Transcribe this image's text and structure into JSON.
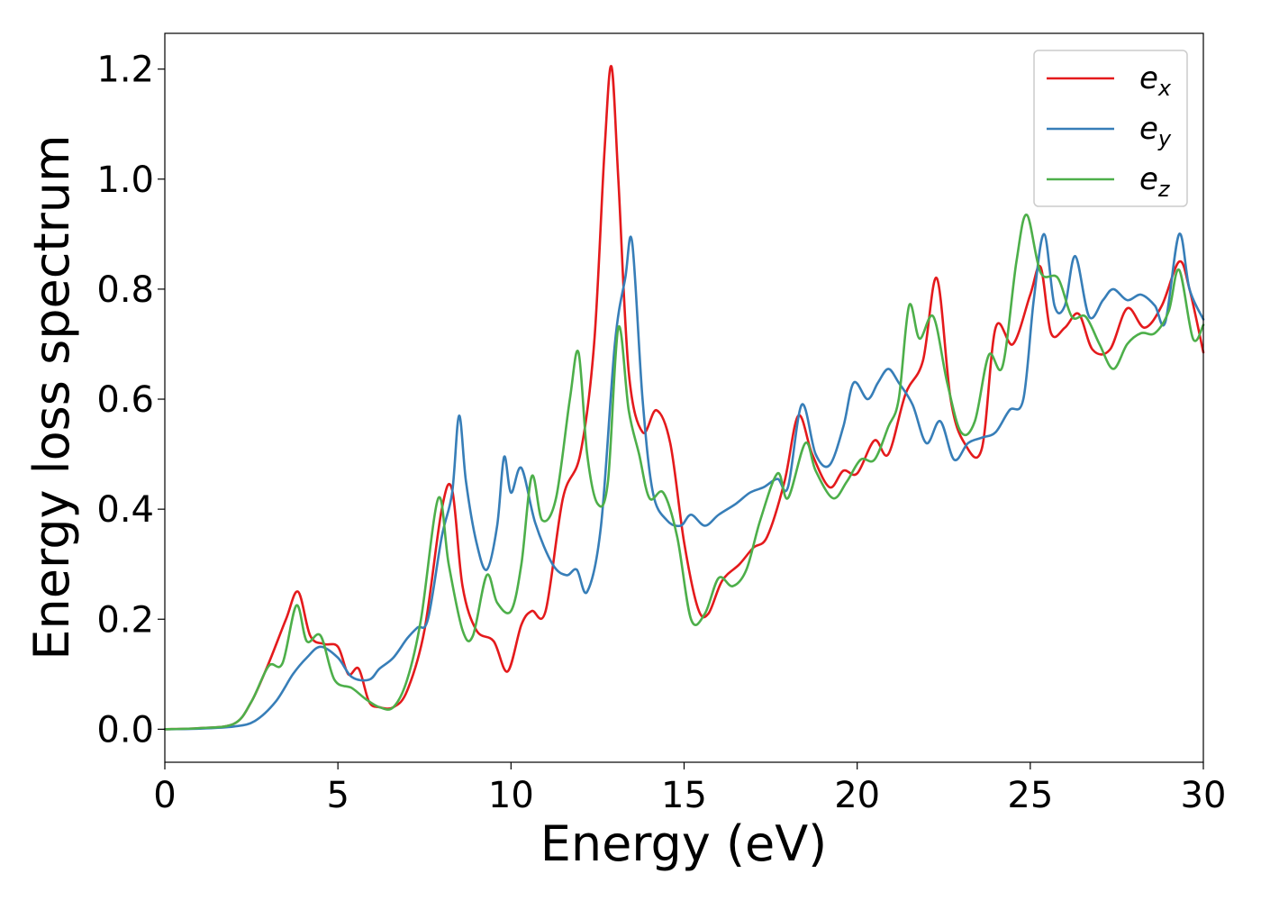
{
  "chart_data": {
    "type": "line",
    "xlabel": "Energy (eV)",
    "ylabel": "Energy loss spectrum",
    "xlim": [
      0,
      30
    ],
    "ylim": [
      -0.06,
      1.265
    ],
    "xticks": [
      "0",
      "5",
      "10",
      "15",
      "20",
      "25",
      "30"
    ],
    "yticks": [
      "0.0",
      "0.2",
      "0.4",
      "0.6",
      "0.8",
      "1.0",
      "1.2"
    ],
    "grid": false,
    "legend_position": "top-right",
    "series": [
      {
        "name": "e_x",
        "legend_base": "e",
        "legend_sub": "x",
        "color": "#e41a1c",
        "points": [
          [
            0,
            0
          ],
          [
            1,
            0.002
          ],
          [
            2,
            0.01
          ],
          [
            2.5,
            0.05
          ],
          [
            3,
            0.12
          ],
          [
            3.5,
            0.2
          ],
          [
            3.85,
            0.25
          ],
          [
            4.2,
            0.17
          ],
          [
            4.6,
            0.155
          ],
          [
            5,
            0.15
          ],
          [
            5.3,
            0.1
          ],
          [
            5.6,
            0.11
          ],
          [
            5.9,
            0.05
          ],
          [
            6.2,
            0.04
          ],
          [
            6.6,
            0.04
          ],
          [
            7,
            0.07
          ],
          [
            7.5,
            0.18
          ],
          [
            8,
            0.4
          ],
          [
            8.3,
            0.435
          ],
          [
            8.6,
            0.26
          ],
          [
            9,
            0.18
          ],
          [
            9.5,
            0.16
          ],
          [
            9.9,
            0.105
          ],
          [
            10.3,
            0.19
          ],
          [
            10.6,
            0.215
          ],
          [
            11,
            0.215
          ],
          [
            11.5,
            0.42
          ],
          [
            12,
            0.5
          ],
          [
            12.4,
            0.7
          ],
          [
            12.7,
            1.05
          ],
          [
            12.9,
            1.205
          ],
          [
            13.1,
            1.0
          ],
          [
            13.4,
            0.65
          ],
          [
            13.8,
            0.54
          ],
          [
            14.2,
            0.58
          ],
          [
            14.6,
            0.52
          ],
          [
            15,
            0.34
          ],
          [
            15.4,
            0.22
          ],
          [
            15.7,
            0.21
          ],
          [
            16.1,
            0.27
          ],
          [
            16.6,
            0.3
          ],
          [
            17,
            0.33
          ],
          [
            17.4,
            0.35
          ],
          [
            17.9,
            0.45
          ],
          [
            18.3,
            0.57
          ],
          [
            18.7,
            0.5
          ],
          [
            19.2,
            0.44
          ],
          [
            19.6,
            0.47
          ],
          [
            20,
            0.465
          ],
          [
            20.5,
            0.525
          ],
          [
            20.9,
            0.5
          ],
          [
            21.4,
            0.61
          ],
          [
            21.9,
            0.67
          ],
          [
            22.3,
            0.82
          ],
          [
            22.7,
            0.6
          ],
          [
            23.1,
            0.52
          ],
          [
            23.6,
            0.51
          ],
          [
            24,
            0.73
          ],
          [
            24.5,
            0.7
          ],
          [
            25,
            0.79
          ],
          [
            25.3,
            0.84
          ],
          [
            25.6,
            0.72
          ],
          [
            26,
            0.73
          ],
          [
            26.4,
            0.755
          ],
          [
            26.8,
            0.69
          ],
          [
            27.3,
            0.69
          ],
          [
            27.8,
            0.765
          ],
          [
            28.3,
            0.73
          ],
          [
            28.8,
            0.77
          ],
          [
            29.3,
            0.85
          ],
          [
            29.6,
            0.8
          ],
          [
            30,
            0.685
          ]
        ]
      },
      {
        "name": "e_y",
        "legend_base": "e",
        "legend_sub": "y",
        "color": "#377eb8",
        "points": [
          [
            0,
            0
          ],
          [
            1,
            0.001
          ],
          [
            2,
            0.005
          ],
          [
            2.6,
            0.015
          ],
          [
            3.2,
            0.05
          ],
          [
            3.7,
            0.1
          ],
          [
            4.1,
            0.13
          ],
          [
            4.5,
            0.15
          ],
          [
            5,
            0.13
          ],
          [
            5.4,
            0.095
          ],
          [
            5.9,
            0.09
          ],
          [
            6.2,
            0.11
          ],
          [
            6.6,
            0.13
          ],
          [
            7,
            0.165
          ],
          [
            7.3,
            0.185
          ],
          [
            7.6,
            0.2
          ],
          [
            8,
            0.35
          ],
          [
            8.3,
            0.43
          ],
          [
            8.5,
            0.57
          ],
          [
            8.7,
            0.45
          ],
          [
            9,
            0.34
          ],
          [
            9.3,
            0.29
          ],
          [
            9.6,
            0.37
          ],
          [
            9.8,
            0.495
          ],
          [
            10,
            0.43
          ],
          [
            10.3,
            0.475
          ],
          [
            10.7,
            0.375
          ],
          [
            11.2,
            0.3
          ],
          [
            11.6,
            0.28
          ],
          [
            11.9,
            0.29
          ],
          [
            12.2,
            0.25
          ],
          [
            12.6,
            0.37
          ],
          [
            13,
            0.7
          ],
          [
            13.3,
            0.82
          ],
          [
            13.5,
            0.885
          ],
          [
            13.8,
            0.6
          ],
          [
            14.1,
            0.43
          ],
          [
            14.5,
            0.38
          ],
          [
            14.9,
            0.37
          ],
          [
            15.2,
            0.39
          ],
          [
            15.6,
            0.37
          ],
          [
            16,
            0.39
          ],
          [
            16.5,
            0.41
          ],
          [
            16.9,
            0.43
          ],
          [
            17.3,
            0.44
          ],
          [
            17.7,
            0.455
          ],
          [
            18,
            0.44
          ],
          [
            18.4,
            0.59
          ],
          [
            18.8,
            0.5
          ],
          [
            19.2,
            0.48
          ],
          [
            19.6,
            0.55
          ],
          [
            19.9,
            0.63
          ],
          [
            20.3,
            0.6
          ],
          [
            20.6,
            0.63
          ],
          [
            20.9,
            0.655
          ],
          [
            21.2,
            0.63
          ],
          [
            21.6,
            0.59
          ],
          [
            22,
            0.52
          ],
          [
            22.4,
            0.56
          ],
          [
            22.8,
            0.49
          ],
          [
            23.2,
            0.52
          ],
          [
            23.6,
            0.53
          ],
          [
            24,
            0.54
          ],
          [
            24.4,
            0.58
          ],
          [
            24.8,
            0.6
          ],
          [
            25.1,
            0.78
          ],
          [
            25.4,
            0.9
          ],
          [
            25.7,
            0.77
          ],
          [
            26,
            0.77
          ],
          [
            26.3,
            0.86
          ],
          [
            26.7,
            0.75
          ],
          [
            27.1,
            0.78
          ],
          [
            27.4,
            0.8
          ],
          [
            27.8,
            0.78
          ],
          [
            28.2,
            0.79
          ],
          [
            28.6,
            0.77
          ],
          [
            28.9,
            0.74
          ],
          [
            29.3,
            0.9
          ],
          [
            29.6,
            0.8
          ],
          [
            30,
            0.745
          ]
        ]
      },
      {
        "name": "e_z",
        "legend_base": "e",
        "legend_sub": "z",
        "color": "#4daf4a",
        "points": [
          [
            0,
            0
          ],
          [
            1,
            0.002
          ],
          [
            2,
            0.01
          ],
          [
            2.5,
            0.05
          ],
          [
            3,
            0.115
          ],
          [
            3.4,
            0.12
          ],
          [
            3.8,
            0.225
          ],
          [
            4.1,
            0.16
          ],
          [
            4.5,
            0.17
          ],
          [
            4.9,
            0.09
          ],
          [
            5.4,
            0.075
          ],
          [
            5.8,
            0.055
          ],
          [
            6.2,
            0.04
          ],
          [
            6.6,
            0.04
          ],
          [
            7,
            0.09
          ],
          [
            7.4,
            0.2
          ],
          [
            7.9,
            0.42
          ],
          [
            8.2,
            0.3
          ],
          [
            8.6,
            0.18
          ],
          [
            8.9,
            0.17
          ],
          [
            9.3,
            0.28
          ],
          [
            9.6,
            0.23
          ],
          [
            10,
            0.215
          ],
          [
            10.3,
            0.3
          ],
          [
            10.6,
            0.46
          ],
          [
            10.9,
            0.38
          ],
          [
            11.3,
            0.42
          ],
          [
            11.7,
            0.6
          ],
          [
            11.95,
            0.685
          ],
          [
            12.2,
            0.5
          ],
          [
            12.5,
            0.41
          ],
          [
            12.8,
            0.45
          ],
          [
            13.1,
            0.73
          ],
          [
            13.4,
            0.58
          ],
          [
            13.7,
            0.5
          ],
          [
            14,
            0.42
          ],
          [
            14.4,
            0.43
          ],
          [
            14.8,
            0.35
          ],
          [
            15.2,
            0.2
          ],
          [
            15.6,
            0.21
          ],
          [
            16,
            0.275
          ],
          [
            16.4,
            0.26
          ],
          [
            16.8,
            0.29
          ],
          [
            17.2,
            0.38
          ],
          [
            17.7,
            0.465
          ],
          [
            18,
            0.42
          ],
          [
            18.5,
            0.52
          ],
          [
            18.8,
            0.47
          ],
          [
            19.3,
            0.42
          ],
          [
            19.7,
            0.45
          ],
          [
            20.1,
            0.49
          ],
          [
            20.5,
            0.49
          ],
          [
            20.9,
            0.55
          ],
          [
            21.2,
            0.6
          ],
          [
            21.5,
            0.77
          ],
          [
            21.8,
            0.71
          ],
          [
            22.2,
            0.75
          ],
          [
            22.6,
            0.63
          ],
          [
            23,
            0.54
          ],
          [
            23.4,
            0.56
          ],
          [
            23.8,
            0.68
          ],
          [
            24.2,
            0.66
          ],
          [
            24.6,
            0.85
          ],
          [
            24.9,
            0.935
          ],
          [
            25.3,
            0.83
          ],
          [
            25.8,
            0.82
          ],
          [
            26.2,
            0.75
          ],
          [
            26.6,
            0.75
          ],
          [
            27,
            0.7
          ],
          [
            27.4,
            0.655
          ],
          [
            27.8,
            0.7
          ],
          [
            28.2,
            0.72
          ],
          [
            28.6,
            0.72
          ],
          [
            29,
            0.76
          ],
          [
            29.3,
            0.835
          ],
          [
            29.7,
            0.71
          ],
          [
            30,
            0.735
          ]
        ]
      }
    ]
  }
}
